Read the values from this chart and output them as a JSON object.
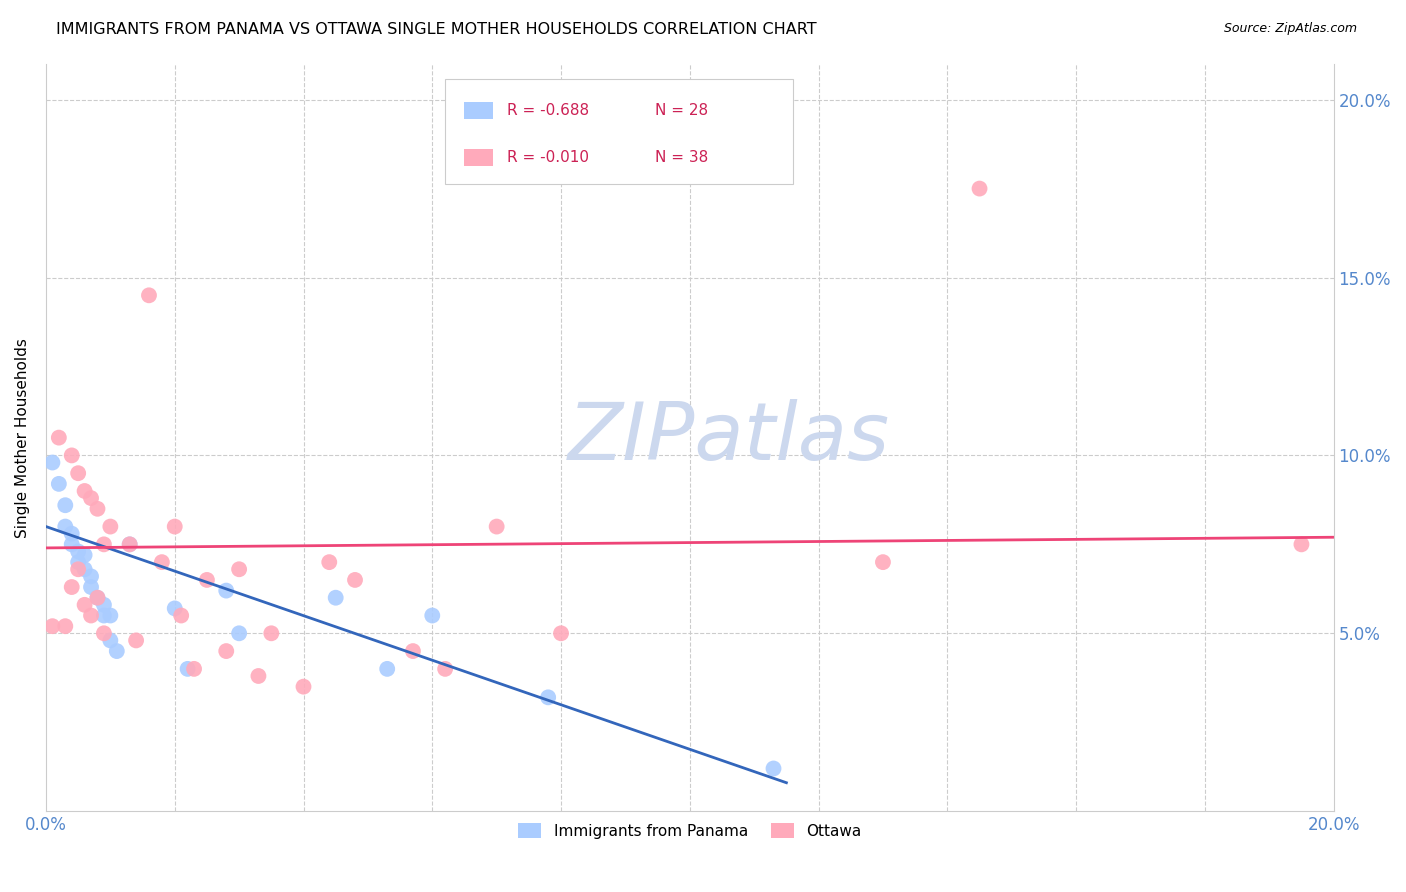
{
  "title": "IMMIGRANTS FROM PANAMA VS OTTAWA SINGLE MOTHER HOUSEHOLDS CORRELATION CHART",
  "source": "Source: ZipAtlas.com",
  "ylabel": "Single Mother Households",
  "legend_label1": "Immigrants from Panama",
  "legend_label2": "Ottawa",
  "r1": "-0.688",
  "n1": "28",
  "r2": "-0.010",
  "n2": "38",
  "xlim": [
    0.0,
    0.2
  ],
  "ylim": [
    0.0,
    0.21
  ],
  "xticks": [
    0.0,
    0.02,
    0.04,
    0.06,
    0.08,
    0.1,
    0.12,
    0.14,
    0.16,
    0.18,
    0.2
  ],
  "yticks": [
    0.0,
    0.05,
    0.1,
    0.15,
    0.2
  ],
  "color_blue": "#aaccff",
  "color_pink": "#ffaabb",
  "color_blue_line": "#3366bb",
  "color_pink_line": "#ee4477",
  "color_rn": "#cc2255",
  "color_axis": "#5588cc",
  "watermark_color": "#ccd8ee",
  "blue_points_x": [
    0.001,
    0.002,
    0.003,
    0.003,
    0.004,
    0.004,
    0.005,
    0.005,
    0.006,
    0.006,
    0.007,
    0.007,
    0.008,
    0.009,
    0.009,
    0.01,
    0.01,
    0.011,
    0.013,
    0.02,
    0.022,
    0.028,
    0.03,
    0.045,
    0.053,
    0.06,
    0.078,
    0.113
  ],
  "blue_points_y": [
    0.098,
    0.092,
    0.086,
    0.08,
    0.078,
    0.075,
    0.073,
    0.07,
    0.072,
    0.068,
    0.066,
    0.063,
    0.06,
    0.058,
    0.055,
    0.055,
    0.048,
    0.045,
    0.075,
    0.057,
    0.04,
    0.062,
    0.05,
    0.06,
    0.04,
    0.055,
    0.032,
    0.012
  ],
  "pink_points_x": [
    0.001,
    0.002,
    0.003,
    0.004,
    0.004,
    0.005,
    0.005,
    0.006,
    0.006,
    0.007,
    0.007,
    0.008,
    0.008,
    0.009,
    0.009,
    0.01,
    0.013,
    0.014,
    0.016,
    0.018,
    0.02,
    0.021,
    0.023,
    0.025,
    0.028,
    0.03,
    0.033,
    0.035,
    0.04,
    0.044,
    0.048,
    0.057,
    0.062,
    0.07,
    0.08,
    0.13,
    0.145,
    0.195
  ],
  "pink_points_y": [
    0.052,
    0.105,
    0.052,
    0.1,
    0.063,
    0.095,
    0.068,
    0.09,
    0.058,
    0.088,
    0.055,
    0.085,
    0.06,
    0.075,
    0.05,
    0.08,
    0.075,
    0.048,
    0.145,
    0.07,
    0.08,
    0.055,
    0.04,
    0.065,
    0.045,
    0.068,
    0.038,
    0.05,
    0.035,
    0.07,
    0.065,
    0.045,
    0.04,
    0.08,
    0.05,
    0.07,
    0.175,
    0.075
  ],
  "blue_line_x": [
    0.0,
    0.115
  ],
  "blue_line_y": [
    0.08,
    0.008
  ],
  "pink_line_x": [
    0.0,
    0.2
  ],
  "pink_line_y": [
    0.074,
    0.077
  ]
}
